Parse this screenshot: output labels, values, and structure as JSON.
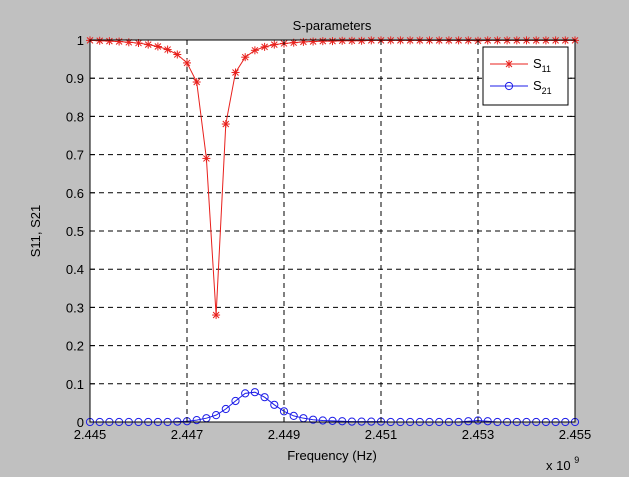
{
  "chart_data": {
    "type": "line",
    "title": "S-parameters",
    "xlabel": "Frequency (Hz)",
    "ylabel": "S11, S21",
    "x_multiplier_label": "x 10",
    "x_multiplier_exponent": "9",
    "xlim": [
      2.445,
      2.455
    ],
    "ylim": [
      0,
      1
    ],
    "grid": true,
    "legend_position": "top-right",
    "x_ticks": [
      2.445,
      2.447,
      2.449,
      2.451,
      2.453,
      2.455
    ],
    "x_tick_labels": [
      "2.445",
      "2.447",
      "2.449",
      "2.451",
      "2.453",
      "2.455"
    ],
    "y_ticks": [
      0,
      0.1,
      0.2,
      0.3,
      0.4,
      0.5,
      0.6,
      0.7,
      0.8,
      0.9,
      1
    ],
    "y_tick_labels": [
      "0",
      "0.1",
      "0.2",
      "0.3",
      "0.4",
      "0.5",
      "0.6",
      "0.7",
      "0.8",
      "0.9",
      "1"
    ],
    "x": [
      2.445,
      2.4452,
      2.4454,
      2.4456,
      2.4458,
      2.446,
      2.4462,
      2.4464,
      2.4466,
      2.4468,
      2.447,
      2.4472,
      2.4474,
      2.4476,
      2.4478,
      2.448,
      2.4482,
      2.4484,
      2.4486,
      2.4488,
      2.449,
      2.4492,
      2.4494,
      2.4496,
      2.4498,
      2.45,
      2.4502,
      2.4504,
      2.4506,
      2.4508,
      2.451,
      2.4512,
      2.4514,
      2.4516,
      2.4518,
      2.452,
      2.4522,
      2.4524,
      2.4526,
      2.4528,
      2.453,
      2.4532,
      2.4534,
      2.4536,
      2.4538,
      2.454,
      2.4542,
      2.4544,
      2.4546,
      2.4548,
      2.455
    ],
    "series": [
      {
        "name_main": "S",
        "name_sub": "11",
        "color": "#e8201c",
        "marker": "star",
        "values": [
          0.999,
          0.998,
          0.997,
          0.996,
          0.994,
          0.992,
          0.988,
          0.983,
          0.975,
          0.962,
          0.94,
          0.89,
          0.69,
          0.28,
          0.78,
          0.915,
          0.955,
          0.973,
          0.982,
          0.988,
          0.991,
          0.993,
          0.995,
          0.996,
          0.997,
          0.997,
          0.998,
          0.998,
          0.998,
          0.999,
          0.999,
          0.999,
          0.999,
          0.999,
          0.999,
          0.999,
          0.999,
          0.999,
          0.999,
          0.999,
          0.998,
          0.999,
          0.999,
          0.999,
          0.999,
          0.999,
          0.999,
          0.999,
          0.999,
          0.999,
          0.999
        ]
      },
      {
        "name_main": "S",
        "name_sub": "21",
        "color": "#1c1ce8",
        "marker": "circle",
        "values": [
          0.0,
          0.0,
          0.0,
          0.0,
          0.0,
          0.0,
          0.0,
          0.0,
          0.0,
          0.001,
          0.002,
          0.005,
          0.01,
          0.018,
          0.034,
          0.055,
          0.075,
          0.078,
          0.065,
          0.045,
          0.028,
          0.016,
          0.01,
          0.006,
          0.004,
          0.003,
          0.002,
          0.001,
          0.001,
          0.001,
          0.001,
          0.0,
          0.0,
          0.0,
          0.0,
          0.0,
          0.0,
          0.0,
          0.0,
          0.002,
          0.004,
          0.002,
          0.0,
          0.0,
          0.0,
          0.0,
          0.0,
          0.0,
          0.0,
          0.0,
          0.0
        ]
      }
    ]
  }
}
